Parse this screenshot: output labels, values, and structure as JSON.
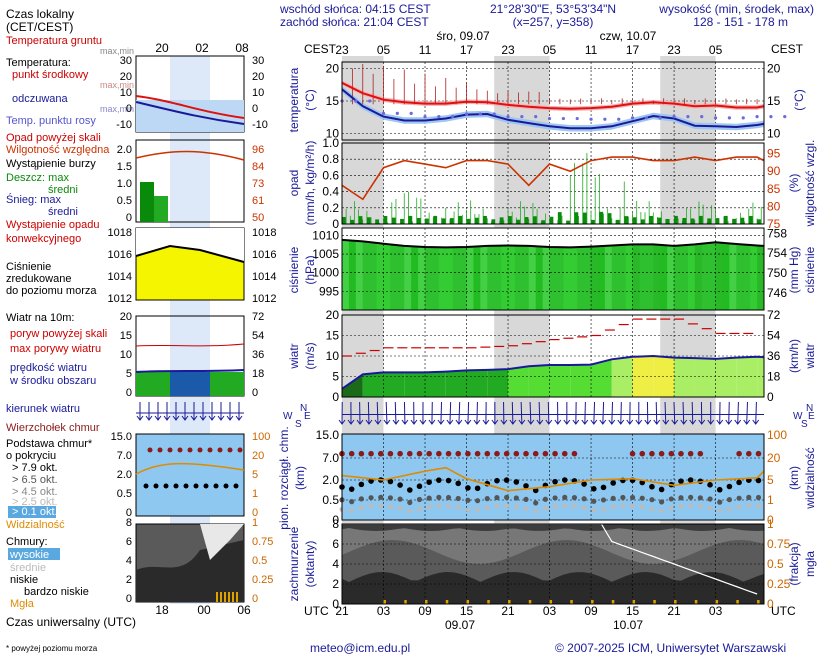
{
  "header": {
    "sunrise": "wschód słońca: 04:15 CEST",
    "sunset": "zachód słońca: 21:04 CEST",
    "coords": "21°28'30\"E, 53°53'34\"N",
    "grid": "(x=257, y=358)",
    "elev_title": "wysokość (min, środek, max)",
    "elev_values": "128 - 151 - 178 m"
  },
  "time_axis": {
    "tz_top": "CEST",
    "tz_bottom": "UTC",
    "day1": "śro, 09.07",
    "day2": "czw, 10.07",
    "top_hours": [
      "23",
      "05",
      "11",
      "17",
      "23",
      "05",
      "11",
      "17",
      "23",
      "05"
    ],
    "bottom_hours": [
      "21",
      "03",
      "09",
      "15",
      "21",
      "03",
      "09",
      "15",
      "21",
      "03"
    ],
    "bottom_dates": [
      "09.07",
      "10.07"
    ]
  },
  "legend": {
    "local_time": "Czas lokalny",
    "local_time_tz": "(CET/CEST)",
    "legend_top_hours": [
      "20",
      "02",
      "08"
    ],
    "legend_bottom_hours": [
      "18",
      "00",
      "06"
    ],
    "utc_label": "Czas uniwersalny (UTC)",
    "footnote": "* powyżej poziomu morza",
    "temp": [
      "Temperatura gruntu",
      "max,min",
      "Temperatura:",
      "punkt środkowy",
      "max,min",
      "odczuwana",
      "max,min",
      "Temp. punktu rosy"
    ],
    "temp_ticks_left": [
      "30",
      "20",
      "10",
      "0",
      "-10"
    ],
    "temp_ticks_right": [
      "30",
      "20",
      "10",
      "0",
      "-10"
    ],
    "precip": [
      "Opad powyżej skali",
      "Wilgotność względna",
      "Wystąpienie burzy",
      "Deszcz: max",
      "średni",
      "Śnieg: max",
      "średni",
      "Wystąpienie opadu",
      "konwekcyjnego"
    ],
    "precip_ticks_left": [
      "2.0",
      "1.5",
      "1.0",
      "0.5",
      "0"
    ],
    "precip_ticks_right": [
      "96",
      "84",
      "73",
      "61",
      "50"
    ],
    "pressure": [
      "Ciśnienie",
      "zredukowane",
      "do poziomu morza"
    ],
    "pressure_ticks_left": [
      "1018",
      "1016",
      "1014",
      "1012"
    ],
    "pressure_ticks_right": [
      "1018",
      "1016",
      "1014",
      "1012"
    ],
    "wind": [
      "Wiatr na 10m:",
      "poryw powyżej skali",
      "max porywy wiatru",
      "prędkość wiatru",
      "w środku obszaru"
    ],
    "wind_ticks_left": [
      "20",
      "15",
      "10",
      "5",
      "0"
    ],
    "wind_ticks_right": [
      "72",
      "54",
      "36",
      "18",
      "0"
    ],
    "wind_dir": "kierunek wiatru",
    "cloud_base": [
      "Wierzchołek chmur",
      "Podstawa chmur*",
      "o pokryciu",
      "> 7.9 okt.",
      "> 6.5 okt.",
      "> 4.5 okt.",
      "> 2.5 okt.",
      "> 0.1 okt.",
      "Widzialność"
    ],
    "cb_ticks_left": [
      "15.0",
      "7.0",
      "2.0",
      "0.5",
      "0"
    ],
    "cb_ticks_right": [
      "100",
      "20",
      "5",
      "1",
      "0"
    ],
    "clouds": [
      "Chmury:",
      "wysokie",
      "średnie",
      "niskie",
      "bardzo niskie",
      "Mgła"
    ],
    "clouds_ticks_left": [
      "8",
      "6",
      "4",
      "2",
      "0"
    ],
    "clouds_ticks_right": [
      "1",
      "0.75",
      "0.5",
      "0.25",
      "0"
    ]
  },
  "panels": {
    "temperature": {
      "label_left": "temperatura",
      "unit_left": "(°C)",
      "label_right": "(°C)",
      "ticks_left": [
        "20",
        "15",
        "10"
      ],
      "ticks_right": [
        "20",
        "15",
        "10"
      ]
    },
    "precip": {
      "label_left": "opad",
      "unit_left": "(mm/h, kg/m²/h)",
      "label_right": "(%)",
      "label_right2": "wilgotność wzgl.",
      "ticks_left": [
        "1.0",
        "0.8",
        "0.6",
        "0.4",
        "0.2",
        "0"
      ],
      "ticks_right": [
        "95",
        "90",
        "85",
        "80",
        "75"
      ]
    },
    "pressure": {
      "label_left": "ciśnienie",
      "unit_left": "(hPa)",
      "label_right": "ciśnienie",
      "unit_right": "(mm Hg)",
      "ticks_left": [
        "1010",
        "1005",
        "1000",
        "995"
      ],
      "ticks_right": [
        "758",
        "754",
        "750",
        "746"
      ]
    },
    "wind": {
      "label_left": "wiatr",
      "unit_left": "(m/s)",
      "label_right": "wiatr",
      "unit_right": "(km/h)",
      "ticks_left": [
        "20",
        "15",
        "10",
        "5",
        "0"
      ],
      "ticks_right": [
        "72",
        "54",
        "36",
        "18",
        "0"
      ]
    },
    "wind_dir": {
      "compass": [
        "N",
        "W",
        "E",
        "S"
      ]
    },
    "clouds": {
      "label_left": "pion. rozciągł. chm.",
      "unit_left": "(km)",
      "label_right": "widzialność",
      "unit_right": "(km)",
      "ticks_left": [
        "15.0",
        "7.0",
        "2.0",
        "0.5",
        "0"
      ],
      "ticks_right": [
        "100",
        "20",
        "5",
        "1",
        "0"
      ]
    },
    "coverage": {
      "label_left": "zachmurzenie",
      "unit_left": "(oktanty)",
      "label_right": "mgła",
      "unit_right": "(frakcja)",
      "ticks_left": [
        "8",
        "6",
        "4",
        "2",
        "0"
      ],
      "ticks_right": [
        "1",
        "0.75",
        "0.5",
        "0.25",
        "0"
      ]
    }
  },
  "footer": {
    "email": "meteo@icm.edu.pl",
    "copyright": "© 2007-2025 ICM, Uniwersytet Warszawski"
  },
  "chart_data": [
    {
      "type": "line",
      "title": "temperatura",
      "x_unit": "hours since 09.07 00 CEST",
      "series": [
        {
          "name": "punkt środkowy",
          "color": "#e01010",
          "x": [
            -1,
            2,
            5,
            8,
            11,
            14,
            17,
            20,
            23,
            26,
            29,
            32,
            35,
            38,
            41,
            44,
            47,
            50,
            53,
            56,
            59,
            60
          ],
          "y": [
            17.8,
            16.2,
            15.2,
            14.8,
            14.6,
            14.6,
            14.9,
            14.8,
            14.4,
            14.1,
            13.9,
            13.8,
            13.9,
            14.1,
            14.6,
            14.8,
            14.6,
            14.2,
            14.3,
            14.0,
            14.0,
            14.2
          ]
        },
        {
          "name": "odczuwana",
          "color": "#1a1a99",
          "x": [
            -1,
            2,
            5,
            8,
            11,
            14,
            17,
            20,
            23,
            26,
            29,
            32,
            35,
            38,
            41,
            44,
            47,
            50,
            53,
            56,
            59,
            60
          ],
          "y": [
            16.8,
            14.2,
            12.6,
            12.0,
            12.0,
            12.3,
            12.9,
            13.0,
            12.1,
            11.6,
            11.1,
            10.8,
            10.8,
            11.1,
            11.9,
            12.7,
            12.3,
            11.2,
            11.1,
            11.0,
            11.3,
            11.5
          ]
        },
        {
          "name": "Temp. punktu rosy",
          "color": "#6a6ae0",
          "x": [
            -1,
            5,
            11,
            17,
            23,
            29,
            35,
            41,
            47,
            53,
            59
          ],
          "y": [
            15.0,
            13.1,
            12.6,
            13.0,
            12.6,
            12.3,
            12.2,
            12.4,
            12.6,
            12.4,
            12.6
          ]
        }
      ],
      "ylim": [
        9,
        21
      ]
    },
    {
      "type": "bar",
      "title": "opad",
      "series": [
        {
          "name": "Wilgotność względna",
          "color": "#cc3300",
          "x": [
            -1,
            2,
            5,
            8,
            11,
            14,
            17,
            20,
            23,
            26,
            29,
            32,
            35,
            38,
            41,
            44,
            47,
            50,
            53,
            56,
            59,
            60
          ],
          "y": [
            86,
            82,
            91,
            93,
            92,
            91,
            93,
            93,
            92,
            86,
            92,
            90,
            93,
            94,
            94,
            93,
            93,
            94,
            93,
            94,
            94,
            93
          ]
        }
      ],
      "ylim_precip": [
        0,
        1.0
      ],
      "ylim_rh": [
        75,
        98
      ]
    },
    {
      "type": "area",
      "title": "ciśnienie",
      "series": [
        {
          "name": "Ciśnienie",
          "color": "#000000",
          "x": [
            -1,
            2,
            5,
            8,
            11,
            14,
            17,
            20,
            23,
            26,
            29,
            32,
            35,
            38,
            41,
            44,
            47,
            50,
            53,
            56,
            59,
            60
          ],
          "y": [
            1008.8,
            1008.4,
            1007.8,
            1007.2,
            1006.9,
            1006.8,
            1006.9,
            1007.2,
            1007.3,
            1007.2,
            1006.9,
            1006.8,
            1007.0,
            1007.3,
            1007.6,
            1007.6,
            1007.2,
            1007.6,
            1008.2,
            1007.7,
            1007.3,
            1007.2
          ]
        }
      ],
      "ylim": [
        990,
        1012
      ]
    },
    {
      "type": "line",
      "title": "wiatr",
      "series": [
        {
          "name": "prędkość wiatru",
          "color": "#1a1a99",
          "x": [
            -1,
            2,
            5,
            8,
            11,
            14,
            17,
            20,
            23,
            26,
            29,
            32,
            35,
            38,
            41,
            44,
            47,
            50,
            53,
            56,
            59,
            60
          ],
          "y": [
            2.0,
            5.5,
            6.0,
            6.0,
            6.0,
            6.2,
            6.5,
            6.6,
            6.8,
            7.5,
            7.8,
            7.8,
            7.9,
            9.2,
            9.8,
            10.0,
            9.6,
            9.5,
            9.3,
            9.6,
            9.8,
            9.7
          ]
        },
        {
          "name": "max porywy wiatru",
          "color": "#cc0000",
          "x": [
            -1,
            5,
            11,
            17,
            23,
            29,
            35,
            41,
            47,
            53,
            59
          ],
          "y": [
            10.0,
            12.0,
            12.0,
            12.0,
            12.5,
            14.0,
            15.0,
            19.0,
            19.0,
            15.5,
            15.5
          ]
        }
      ],
      "ylim": [
        0,
        20
      ]
    },
    {
      "type": "scatter",
      "title": "pion. rozciągł. chm.",
      "series": [
        {
          "name": "Wierzchołek chmur",
          "color": "#8b1a1a",
          "y_const": 8.5
        },
        {
          "name": "Widzialność",
          "color": "#e08a00",
          "x": [
            -1,
            5,
            11,
            14,
            17,
            23,
            29,
            35,
            41,
            47,
            53,
            59,
            60
          ],
          "y": [
            3.0,
            2.0,
            4.0,
            4.8,
            2.3,
            1.2,
            1.5,
            2.0,
            2.3,
            1.6,
            2.0,
            2.5,
            4.0
          ]
        }
      ]
    },
    {
      "type": "area",
      "title": "zachmurzenie",
      "series": [
        {
          "name": "niskie",
          "color": "#555555"
        },
        {
          "name": "średnie",
          "color": "#888888"
        },
        {
          "name": "wysokie",
          "color": "#cccccc"
        }
      ],
      "ylim": [
        0,
        8
      ]
    }
  ]
}
